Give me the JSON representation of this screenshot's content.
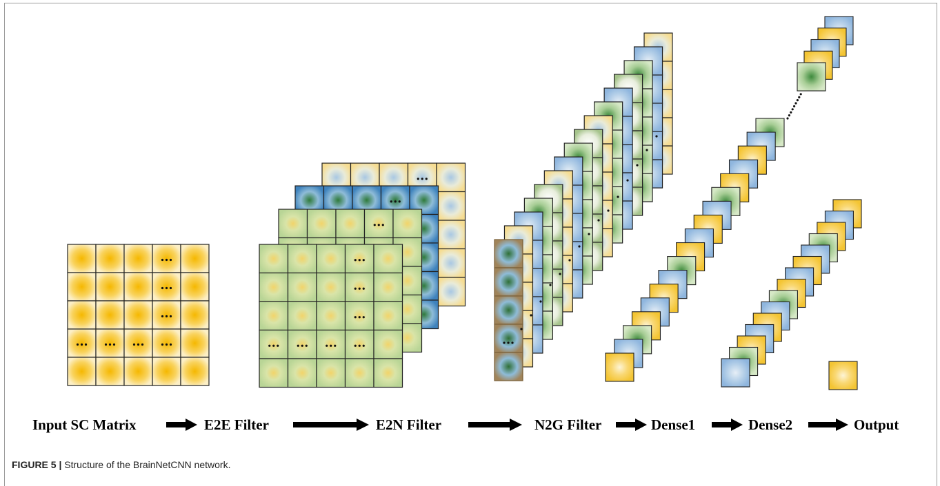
{
  "stages": [
    {
      "id": "input",
      "label": "Input SC Matrix"
    },
    {
      "id": "e2e",
      "label": "E2E Filter"
    },
    {
      "id": "e2n",
      "label": "E2N Filter"
    },
    {
      "id": "n2g",
      "label": "N2G Filter"
    },
    {
      "id": "dense1",
      "label": "Dense1"
    },
    {
      "id": "dense2",
      "label": "Dense2"
    },
    {
      "id": "output",
      "label": "Output"
    }
  ],
  "colors": {
    "yellow": "#f7c21f",
    "yellow_light": "#fbe6a6",
    "green": "#5a9a4a",
    "green_light": "#d3e5b5",
    "blue": "#3b7fb3",
    "blue_light": "#c4d9ec",
    "n2g_brown": "#a0845a"
  },
  "caption": {
    "figure": "FIGURE 5 |",
    "text": " Structure of the BrainNetCNN network."
  }
}
